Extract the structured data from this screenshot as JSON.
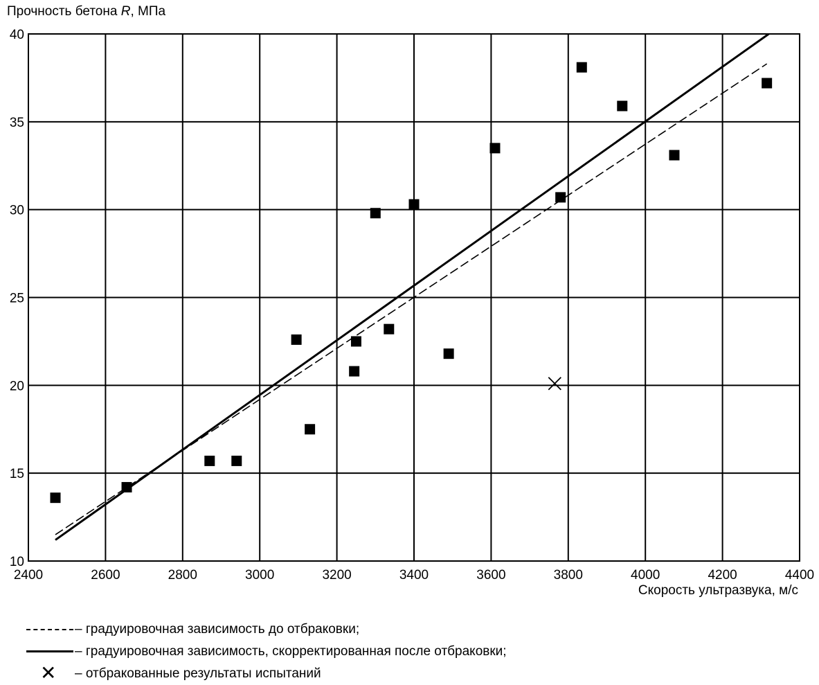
{
  "chart_data": {
    "type": "scatter",
    "ylabel_prefix": "Прочность бетона ",
    "ylabel_var": "R",
    "ylabel_suffix": ", МПа",
    "xlabel": "Скорость ультразвука, м/с",
    "xlim": [
      2400,
      4400
    ],
    "ylim": [
      10,
      40
    ],
    "xticks": [
      2400,
      2600,
      2800,
      3000,
      3200,
      3400,
      3600,
      3800,
      4000,
      4200,
      4400
    ],
    "yticks": [
      10,
      15,
      20,
      25,
      30,
      35,
      40
    ],
    "grid": true,
    "points": [
      {
        "x": 2470,
        "y": 13.6
      },
      {
        "x": 2655,
        "y": 14.2
      },
      {
        "x": 2870,
        "y": 15.7
      },
      {
        "x": 2940,
        "y": 15.7
      },
      {
        "x": 3095,
        "y": 22.6
      },
      {
        "x": 3130,
        "y": 17.5
      },
      {
        "x": 3245,
        "y": 20.8
      },
      {
        "x": 3250,
        "y": 22.5
      },
      {
        "x": 3300,
        "y": 29.8
      },
      {
        "x": 3335,
        "y": 23.2
      },
      {
        "x": 3400,
        "y": 30.3
      },
      {
        "x": 3490,
        "y": 21.8
      },
      {
        "x": 3610,
        "y": 33.5
      },
      {
        "x": 3780,
        "y": 30.7
      },
      {
        "x": 3835,
        "y": 38.1
      },
      {
        "x": 3940,
        "y": 35.9
      },
      {
        "x": 4075,
        "y": 33.1
      },
      {
        "x": 4315,
        "y": 37.2
      }
    ],
    "rejected_points": [
      {
        "x": 3765,
        "y": 20.1
      }
    ],
    "lines": [
      {
        "style": "dashed",
        "x": [
          2470,
          4315
        ],
        "y": [
          11.5,
          38.3
        ]
      },
      {
        "style": "solid",
        "x": [
          2470,
          4320
        ],
        "y": [
          11.2,
          40.0
        ]
      }
    ]
  },
  "legend": {
    "dashed_label": "– градуировочная зависимость до отбраковки;",
    "solid_label": "– градуировочная зависимость, скорректированная после отбраковки;",
    "rejected_label": "– отбракованные результаты испытаний"
  }
}
